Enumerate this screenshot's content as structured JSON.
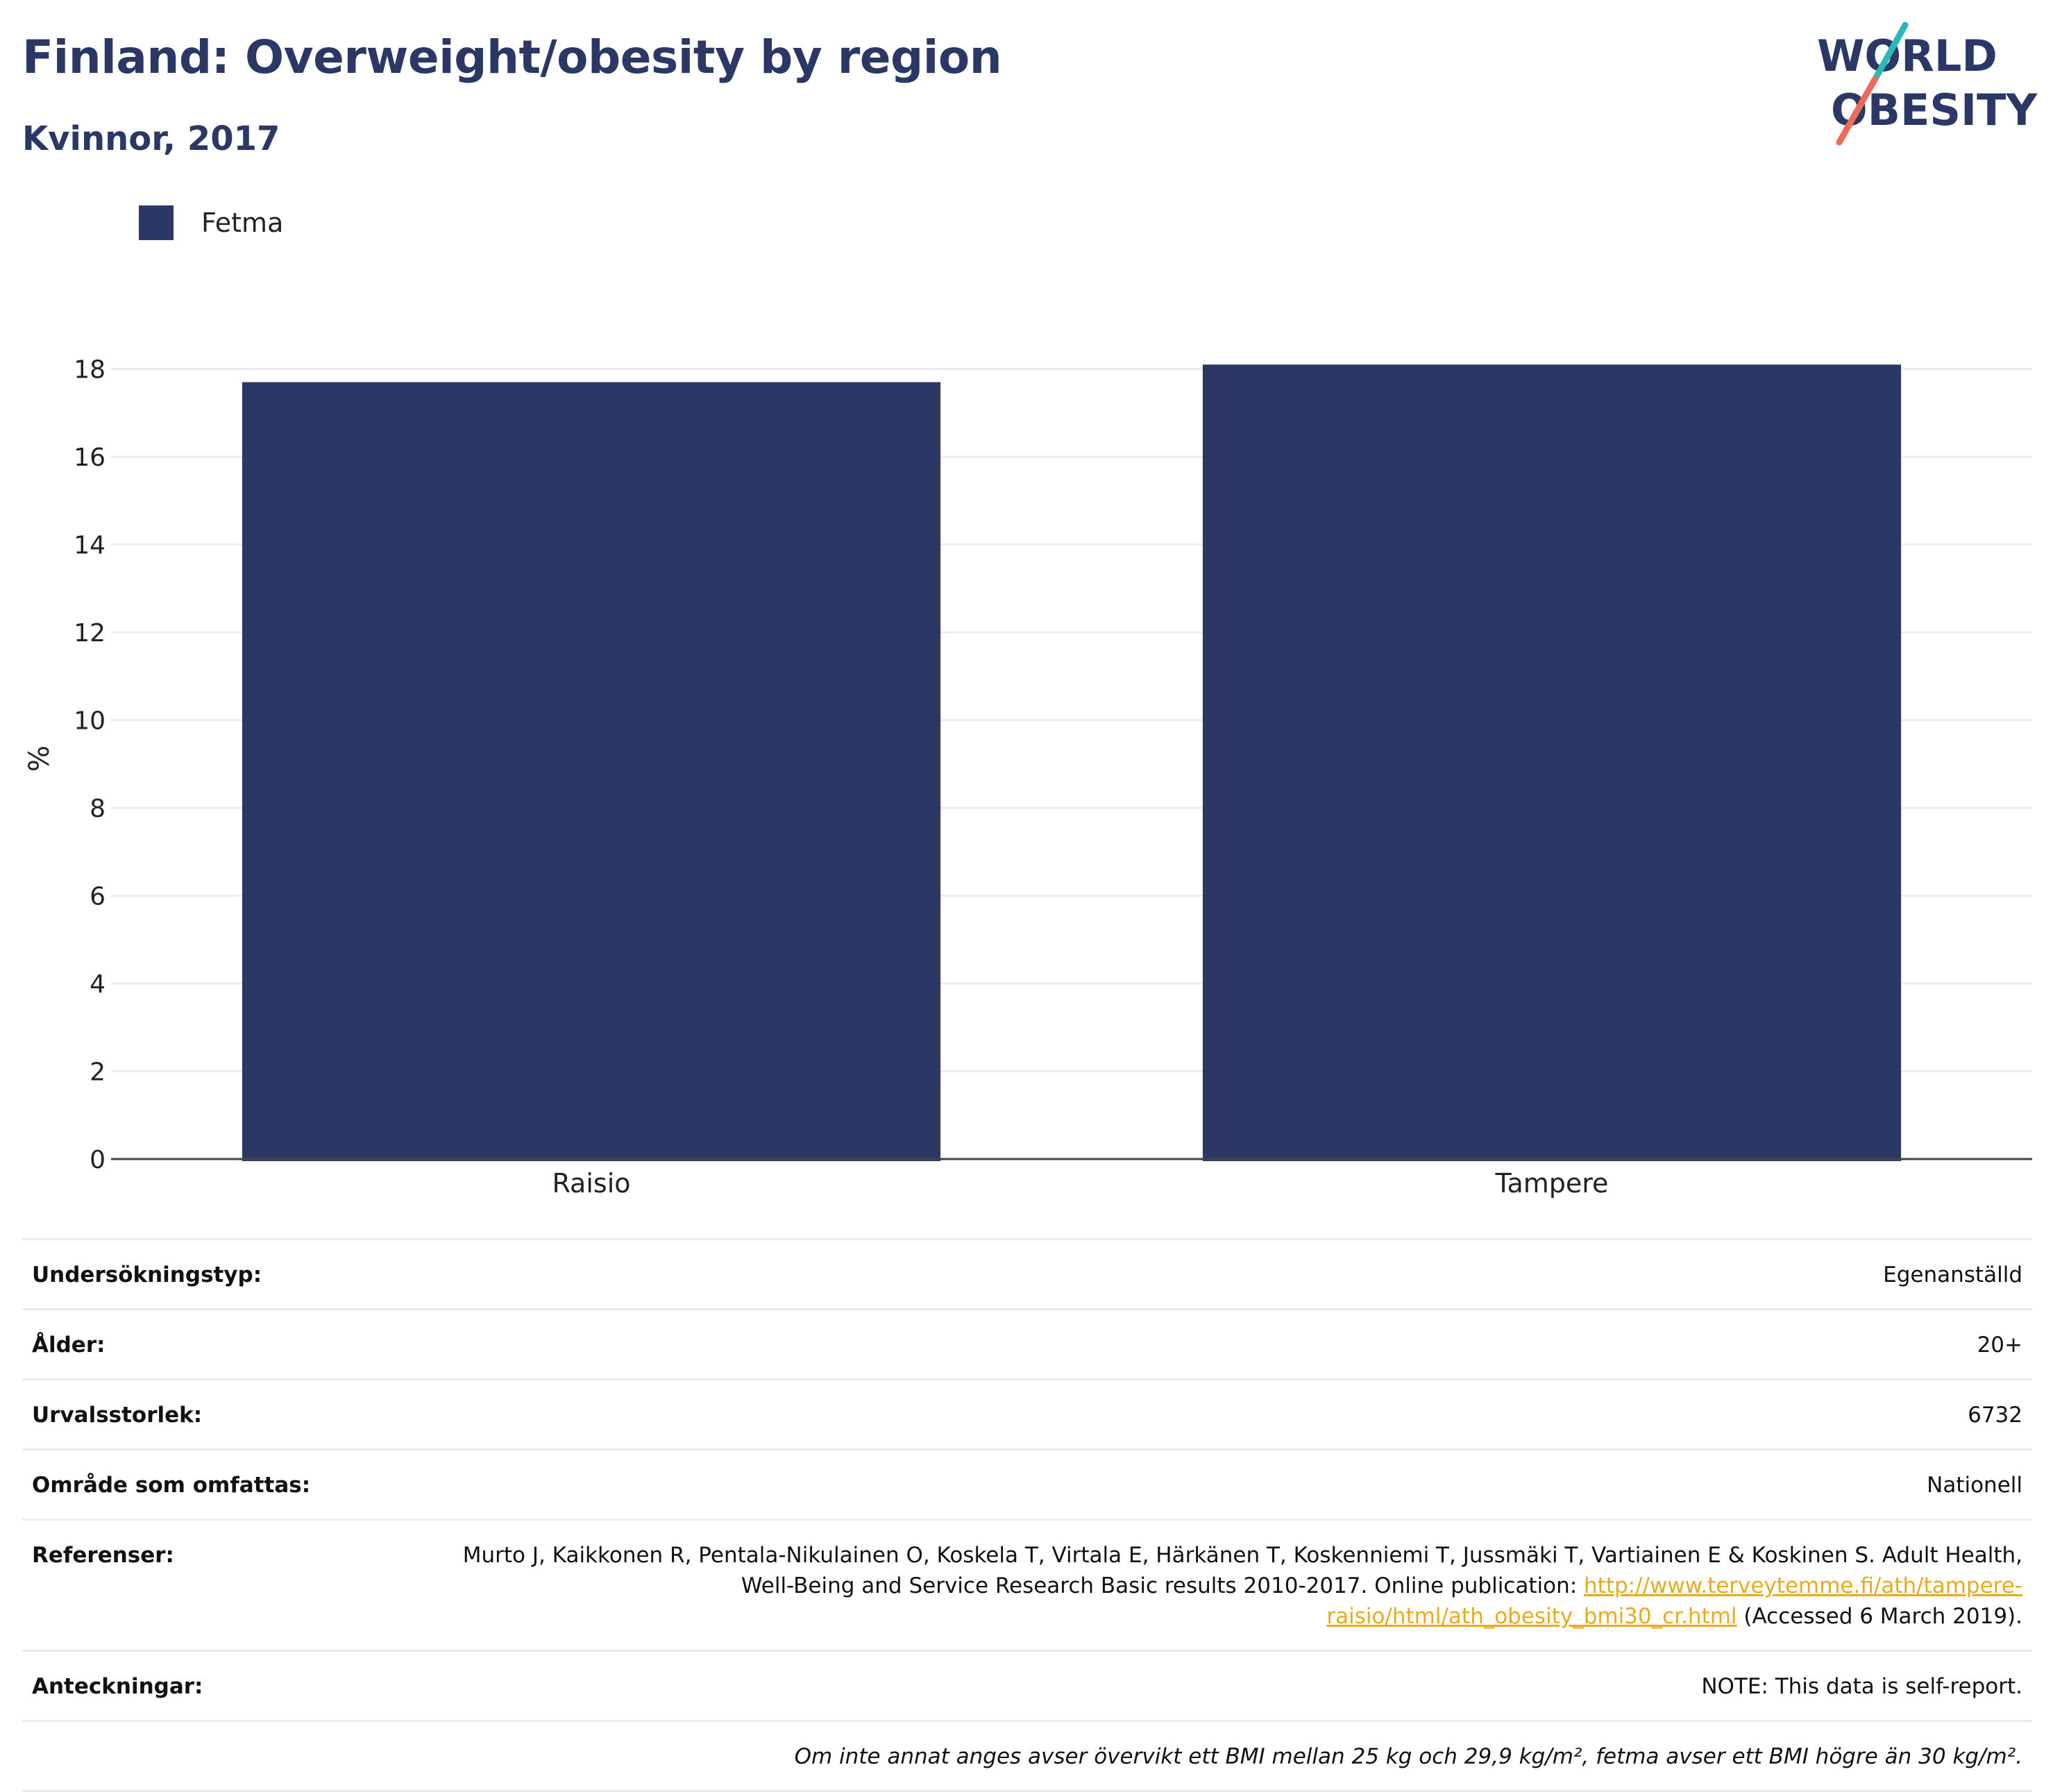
{
  "header": {
    "title": "Finland: Overweight/obesity by region",
    "subtitle": "Kvinnor, 2017"
  },
  "logo": {
    "line1": "WORLD",
    "line2": "OBESITY"
  },
  "colors": {
    "bar": "#2b3866",
    "title": "#2b3866",
    "grid": "#ebebeb",
    "link": "#e9aa1e",
    "logo_teal": "#2ab7b8",
    "logo_coral": "#ee6a5a"
  },
  "chart_data": {
    "type": "bar",
    "categories": [
      "Raisio",
      "Tampere"
    ],
    "series": [
      {
        "name": "Fetma",
        "values": [
          17.7,
          18.1
        ]
      }
    ],
    "ylabel": "%",
    "xlabel": "",
    "ylim": [
      0,
      18.5
    ],
    "yticks": [
      0,
      2,
      4,
      6,
      8,
      10,
      12,
      14,
      16,
      18
    ],
    "grid": true,
    "legend": "top-left"
  },
  "meta": {
    "survey_type_label": "Undersökningstyp:",
    "survey_type_value": "Egenanställd",
    "age_label": "Ålder:",
    "age_value": "20+",
    "sample_label": "Urvalsstorlek:",
    "sample_value": "6732",
    "area_label": "Område som omfattas:",
    "area_value": "Nationell",
    "refs_label": "Referenser:",
    "refs_text_1": "Murto J, Kaikkonen R, Pentala-Nikulainen O, Koskela T, Virtala E, Härkänen T, Koskenniemi T, Jussmäki T, Vartiainen E & Koskinen S. Adult Health, Well-Being and Service Research Basic results 2010-2017. Online publication: ",
    "refs_link": "http://www.terveytemme.fi/ath/tampere-raisio/html/ath_obesity_bmi30_cr.html",
    "refs_text_2": " (Accessed 6 March 2019).",
    "notes_label": "Anteckningar:",
    "notes_value": "NOTE: This data is self-report.",
    "footnote": "Om inte annat anges avser övervikt ett BMI mellan 25 kg och 29,9 kg/m², fetma avser ett BMI högre än 30 kg/m²."
  }
}
